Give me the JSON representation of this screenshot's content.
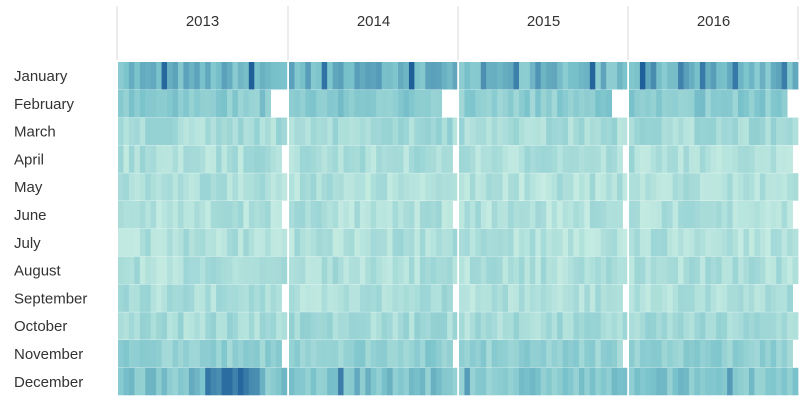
{
  "chart_data": {
    "type": "heatmap",
    "title": "",
    "xlabel": "",
    "ylabel": "",
    "columns": [
      "2013",
      "2014",
      "2015",
      "2016"
    ],
    "rows": [
      "January",
      "February",
      "March",
      "April",
      "May",
      "June",
      "July",
      "August",
      "September",
      "October",
      "November",
      "December"
    ],
    "days_per_month": [
      31,
      29,
      31,
      30,
      31,
      30,
      31,
      31,
      30,
      31,
      30,
      31
    ],
    "color_scale": {
      "low": "#c6ece2",
      "mid": "#7cc4cc",
      "high": "#1f5f9a"
    },
    "relative_intensity_by_month": [
      0.55,
      0.4,
      0.22,
      0.17,
      0.15,
      0.15,
      0.15,
      0.16,
      0.17,
      0.22,
      0.35,
      0.45
    ],
    "relative_intensity_by_year": [
      1.0,
      1.05,
      0.95,
      1.0
    ],
    "gridlines": false,
    "legend": "none"
  }
}
